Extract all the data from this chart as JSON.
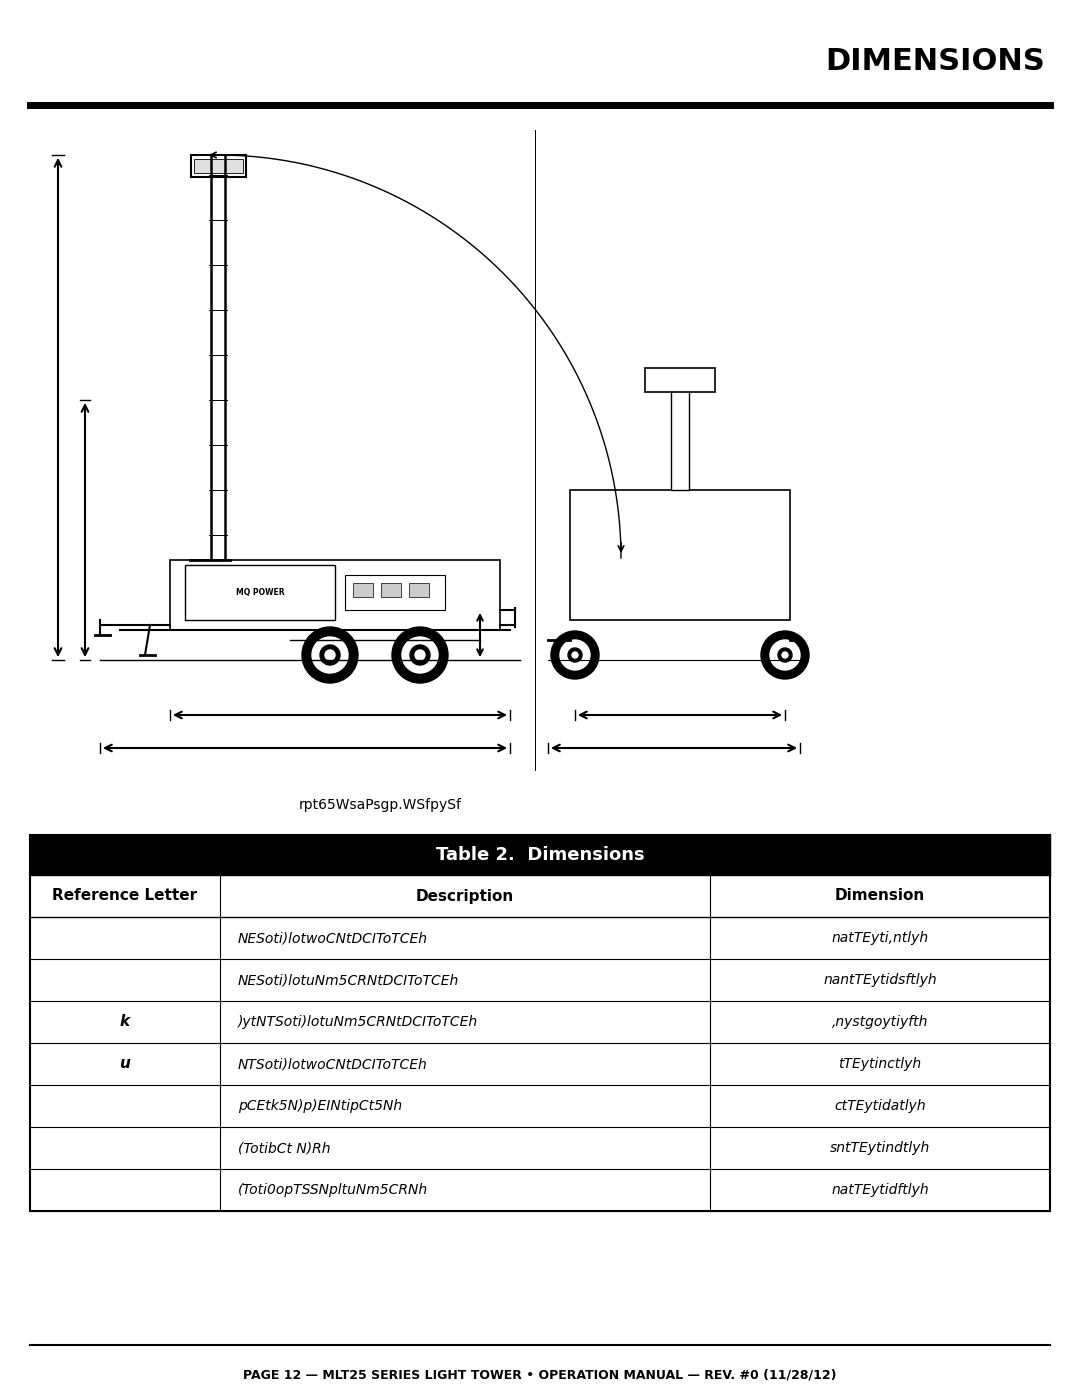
{
  "title": "DIMENSIONS",
  "subtitle": "rpt65WsaPsgp.WSfpySf",
  "footer": "PAGE 12 — MLT25 SERIES LIGHT TOWER • OPERATION MANUAL — REV. #0 (11/28/12)",
  "table_title": "Table 2.  Dimensions",
  "col_headers": [
    "Reference Letter",
    "Description",
    "Dimension"
  ],
  "rows": [
    [
      "",
      "NESoti)lotwoCNtDCIToTCEh",
      "natTEyti,ntlyh"
    ],
    [
      "",
      "NESoti)lotuNm5CRNtDCIToTCEh",
      "nantTEytidsftlyh"
    ],
    [
      "k",
      ")ytNTSoti)lotuNm5CRNtDCIToTCEh",
      ",nystgoytiyfth"
    ],
    [
      "u",
      "NTSoti)lotwoCNtDCIToTCEh",
      "tTEytinctlyh"
    ],
    [
      "",
      "pCEtk5N)p)EINtipCt5Nh",
      "ctTEytidatlyh"
    ],
    [
      "",
      "(TotibCt N)Rh",
      "sntTEytindtlyh"
    ],
    [
      "",
      "(Toti0opTSSNpltuNm5CRNh",
      "natTEytidftlyh"
    ]
  ],
  "bg_color": "#ffffff",
  "table_header_bg": "#000000",
  "table_header_color": "#ffffff",
  "border_color": "#000000"
}
